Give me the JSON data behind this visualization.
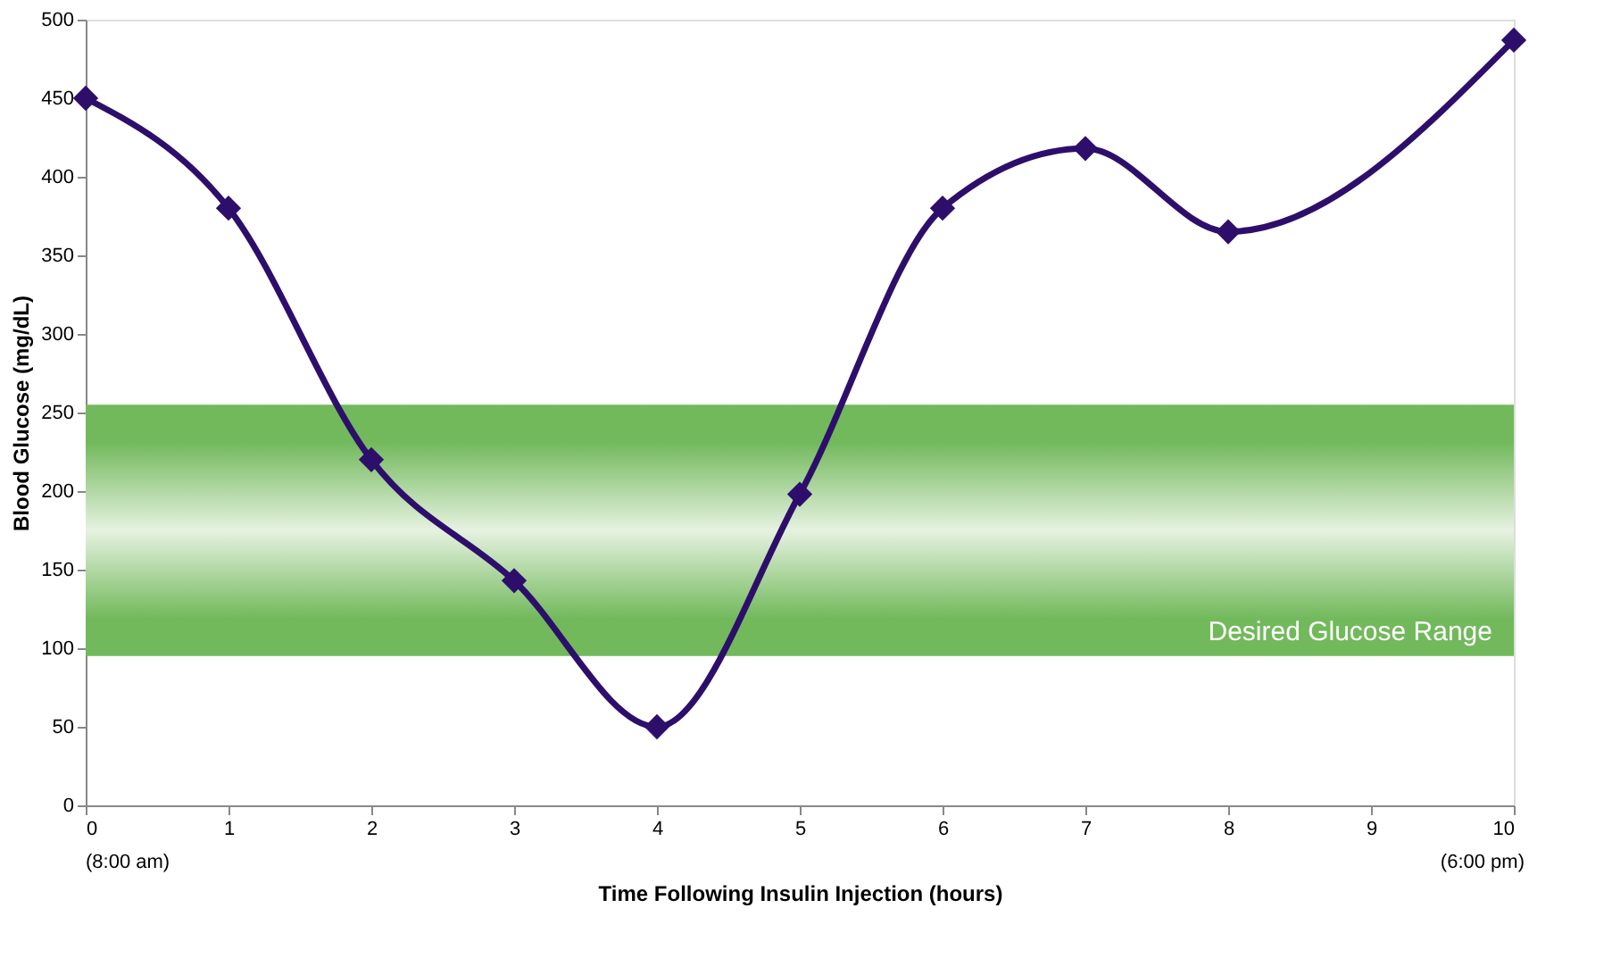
{
  "chart_data": {
    "type": "line",
    "xlabel": "Time Following Insulin Injection (hours)",
    "ylabel": "Blood Glucose (mg/dL)",
    "x": [
      0,
      1,
      2,
      3,
      4,
      5,
      6,
      7,
      8,
      10
    ],
    "series": [
      {
        "color": "#2d0f6b",
        "values": [
          450,
          380,
          220,
          143,
          50,
          198,
          380,
          418,
          365,
          487
        ]
      }
    ],
    "xlim": [
      0,
      10
    ],
    "xticks": [
      0,
      1,
      2,
      3,
      4,
      5,
      6,
      7,
      8,
      9,
      10
    ],
    "ylim": [
      0,
      500
    ],
    "yticks": [
      0,
      50,
      100,
      150,
      200,
      250,
      300,
      350,
      400,
      450,
      500
    ],
    "bands": [
      {
        "axis": "y",
        "from": 95,
        "to": 255,
        "label": "Desired Glucose Range",
        "color": "#72b95c"
      }
    ],
    "annotations": [
      "(8:00 am)",
      "(6:00 pm)"
    ],
    "marker": "diamond",
    "line_style": "solid",
    "grid": false
  }
}
